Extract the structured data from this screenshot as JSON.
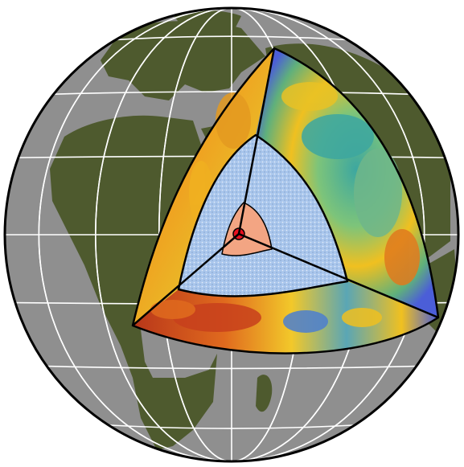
{
  "diagram": {
    "subject": "cutaway-earth-interior",
    "labels": []
  },
  "colors": {
    "ocean": "#8f8f8f",
    "land": "#4e5a2e",
    "graticule": "#ffffff",
    "outline": "#000000",
    "mantle_hot": "#c8401c",
    "mantle_warm": "#f0c020",
    "mantle_mid": "#5fb07c",
    "mantle_cool": "#5070d8",
    "outer_core": "#a9c6ec",
    "inner_core": "#f3a583",
    "center": "#e8111f"
  },
  "icons": [
    "globe-graphic",
    "cutaway-wedge",
    "outer-core-sector",
    "inner-core-sector",
    "earth-center-dot"
  ]
}
